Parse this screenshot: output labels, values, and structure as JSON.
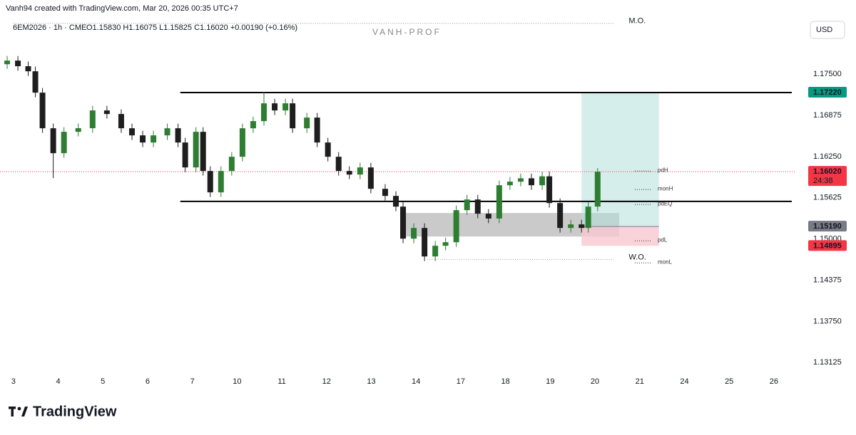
{
  "header": {
    "attribution": "Vanh94 created with TradingView.com, Mar 20, 2026 00:35 UTC+7",
    "symbol": "6EM2026 · 1h · CME",
    "ohlc": "O1.15830 H1.16075 L1.15825 C1.16020 +0.00190 (+0.16%)",
    "watermark": "VANH-PROF",
    "currency": "USD",
    "brand": "TradingView"
  },
  "chart_data": {
    "type": "candlestick",
    "xlim": [
      -0.3,
      17.48
    ],
    "ylim": [
      1.1274,
      1.183
    ],
    "xticks": [
      {
        "value": 0,
        "label": "3"
      },
      {
        "value": 1,
        "label": "4"
      },
      {
        "value": 2,
        "label": "5"
      },
      {
        "value": 3,
        "label": "6"
      },
      {
        "value": 4,
        "label": "7"
      },
      {
        "value": 5,
        "label": "10"
      },
      {
        "value": 6,
        "label": "11"
      },
      {
        "value": 7,
        "label": "12"
      },
      {
        "value": 8,
        "label": "13"
      },
      {
        "value": 9,
        "label": "14"
      },
      {
        "value": 10,
        "label": "17"
      },
      {
        "value": 11,
        "label": "18"
      },
      {
        "value": 12,
        "label": "19"
      },
      {
        "value": 13,
        "label": "20"
      },
      {
        "value": 14,
        "label": "21"
      },
      {
        "value": 15,
        "label": "24"
      },
      {
        "value": 16,
        "label": "25"
      },
      {
        "value": 17,
        "label": "26"
      }
    ],
    "yticks": [
      {
        "value": 1.175,
        "label": "1.17500"
      },
      {
        "value": 1.16875,
        "label": "1.16875"
      },
      {
        "value": 1.1625,
        "label": "1.16250"
      },
      {
        "value": 1.15625,
        "label": "1.15625"
      },
      {
        "value": 1.15,
        "label": "1.15000"
      },
      {
        "value": 1.14375,
        "label": "1.14375"
      },
      {
        "value": 1.1375,
        "label": "1.13750"
      },
      {
        "value": 1.13125,
        "label": "1.13125"
      }
    ],
    "up_color": "#2e7d32",
    "down_color": "#1e1e1e",
    "x": [
      -0.14,
      0.1,
      0.33,
      0.49,
      0.65,
      0.89,
      1.13,
      1.45,
      1.77,
      2.09,
      2.41,
      2.65,
      2.89,
      3.13,
      3.44,
      3.68,
      3.84,
      4.08,
      4.24,
      4.4,
      4.64,
      4.88,
      5.12,
      5.36,
      5.6,
      5.84,
      6.08,
      6.24,
      6.56,
      6.79,
      7.03,
      7.27,
      7.51,
      7.75,
      7.99,
      8.31,
      8.55,
      8.71,
      8.95,
      9.19,
      9.43,
      9.66,
      9.9,
      10.14,
      10.38,
      10.62,
      10.86,
      11.1,
      11.34,
      11.58,
      11.82,
      11.98,
      12.22,
      12.46,
      12.7,
      12.85,
      13.06
    ],
    "open": [
      1.1765,
      1.17705,
      1.1762,
      1.17543,
      1.17219,
      1.16679,
      1.16301,
      1.16625,
      1.1668,
      1.16949,
      1.16895,
      1.16679,
      1.16571,
      1.16463,
      1.16571,
      1.16679,
      1.16463,
      1.16085,
      1.16625,
      1.16031,
      1.15707,
      1.16031,
      1.16247,
      1.16679,
      1.16787,
      1.17057,
      1.16949,
      1.17057,
      1.16679,
      1.16841,
      1.16463,
      1.16247,
      1.16031,
      1.15977,
      1.16085,
      1.15761,
      1.15653,
      1.15491,
      1.15005,
      1.15167,
      1.14735,
      1.14897,
      1.14951,
      1.15437,
      1.15599,
      1.15383,
      1.1531,
      1.15815,
      1.15869,
      1.1592,
      1.15815,
      1.1595,
      1.15545,
      1.15167,
      1.15221,
      1.15167,
      1.15491
    ],
    "high": [
      1.17775,
      1.17775,
      1.1769,
      1.17613,
      1.17289,
      1.16749,
      1.16695,
      1.1675,
      1.17019,
      1.17019,
      1.16965,
      1.16749,
      1.16641,
      1.16641,
      1.16749,
      1.16749,
      1.16533,
      1.16695,
      1.16695,
      1.16101,
      1.16101,
      1.16317,
      1.16749,
      1.16857,
      1.17227,
      1.17127,
      1.17127,
      1.17127,
      1.16911,
      1.16911,
      1.16533,
      1.16317,
      1.16101,
      1.16155,
      1.16155,
      1.15831,
      1.15723,
      1.15561,
      1.15237,
      1.15237,
      1.14967,
      1.15021,
      1.15507,
      1.15669,
      1.15669,
      1.15453,
      1.15885,
      1.15939,
      1.1599,
      1.1599,
      1.1602,
      1.1602,
      1.15615,
      1.15291,
      1.15291,
      1.15561,
      1.16075
    ],
    "low": [
      1.1758,
      1.1755,
      1.17473,
      1.17149,
      1.16609,
      1.15923,
      1.16231,
      1.16555,
      1.1661,
      1.16825,
      1.16609,
      1.16501,
      1.16393,
      1.16393,
      1.16501,
      1.16393,
      1.16015,
      1.16015,
      1.15961,
      1.15637,
      1.15637,
      1.15961,
      1.16177,
      1.16609,
      1.16717,
      1.16879,
      1.16879,
      1.16609,
      1.16609,
      1.16393,
      1.16177,
      1.15961,
      1.15907,
      1.15907,
      1.15691,
      1.15583,
      1.15421,
      1.14935,
      1.14935,
      1.14665,
      1.14665,
      1.14827,
      1.14881,
      1.15367,
      1.15313,
      1.1524,
      1.1524,
      1.15745,
      1.15799,
      1.15745,
      1.15745,
      1.15475,
      1.15097,
      1.15097,
      1.15097,
      1.15097,
      1.15421
    ],
    "close": [
      1.17705,
      1.1762,
      1.17543,
      1.17219,
      1.16679,
      1.16301,
      1.16625,
      1.1668,
      1.16949,
      1.16895,
      1.16679,
      1.16571,
      1.16463,
      1.16571,
      1.16679,
      1.16463,
      1.16085,
      1.16625,
      1.16031,
      1.15707,
      1.16031,
      1.16247,
      1.16679,
      1.16787,
      1.17057,
      1.16949,
      1.17057,
      1.16679,
      1.16841,
      1.16463,
      1.16247,
      1.16031,
      1.15977,
      1.16085,
      1.15761,
      1.15653,
      1.15491,
      1.15005,
      1.15167,
      1.14735,
      1.14897,
      1.14951,
      1.15437,
      1.15599,
      1.15383,
      1.1531,
      1.15815,
      1.15869,
      1.1592,
      1.15815,
      1.1595,
      1.15545,
      1.15167,
      1.15221,
      1.15167,
      1.15491,
      1.1602
    ],
    "lines": [
      {
        "value": 1.1722,
        "x": [
          3.73,
          17.4
        ]
      },
      {
        "value": 1.1557,
        "x": [
          3.73,
          17.4
        ]
      }
    ],
    "zone": {
      "top": 1.15394,
      "bottom": 1.15037,
      "x": [
        8.76,
        13.54
      ],
      "color": "#bdbdbd"
    },
    "position": {
      "target": 1.1722,
      "entry": 1.1519,
      "stop": 1.14895,
      "x": [
        12.7,
        14.43
      ],
      "profit_color": "#b2dfdb",
      "loss_color": "#f8c8d0"
    },
    "opens": [
      {
        "label": "M.O.",
        "value": 1.1827,
        "x": [
          0,
          13.42
        ]
      },
      {
        "label": "W.O.",
        "value": 1.1469,
        "x": [
          9.25,
          13.42
        ]
      }
    ],
    "levels": [
      {
        "label": "pdH",
        "value": 1.1603
      },
      {
        "label": "monH",
        "value": 1.1575
      },
      {
        "label": "pdEQ",
        "value": 1.15523
      },
      {
        "label": "pdL",
        "value": 1.14972
      },
      {
        "label": "monL",
        "value": 1.14637
      }
    ],
    "last_price": {
      "value": 1.1602,
      "color": "#f23645"
    },
    "price_labels": [
      {
        "value": 1.1722,
        "label": "1.17220",
        "color": "#089981"
      },
      {
        "value": 1.1602,
        "label": "1.16020",
        "color": "#f23645",
        "countdown": "24:38"
      },
      {
        "value": 1.1519,
        "label": "1.15190",
        "color": "#787b86"
      },
      {
        "value": 1.14895,
        "label": "1.14895",
        "color": "#f23645"
      }
    ]
  }
}
